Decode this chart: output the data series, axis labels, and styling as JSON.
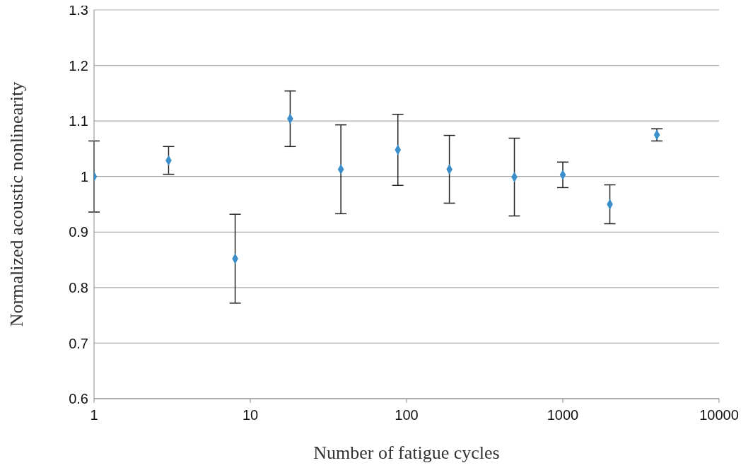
{
  "chart_data": {
    "type": "scatter",
    "xlabel": "Number of fatigue cycles",
    "ylabel": "Normalized acoustic nonlinearity",
    "log": "x",
    "grid": "y",
    "marker": "diamond",
    "x": [
      1,
      3,
      8,
      18,
      38,
      88,
      188,
      490,
      1000,
      2000,
      4000
    ],
    "series": [
      {
        "color": "#3a8fcb",
        "values": [
          1.0,
          1.029,
          0.852,
          1.104,
          1.013,
          1.048,
          1.013,
          0.999,
          1.003,
          0.95,
          1.075
        ],
        "errors": [
          0.064,
          0.025,
          0.08,
          0.05,
          0.08,
          0.064,
          0.061,
          0.07,
          0.023,
          0.035,
          0.011
        ]
      }
    ],
    "xlim": [
      1,
      10000
    ],
    "xticks": [
      1,
      10,
      100,
      1000,
      10000
    ],
    "ylim": [
      0.6,
      1.3
    ],
    "yticks": [
      0.6,
      0.7,
      0.8,
      0.9,
      1,
      1.1,
      1.2,
      1.3
    ]
  }
}
